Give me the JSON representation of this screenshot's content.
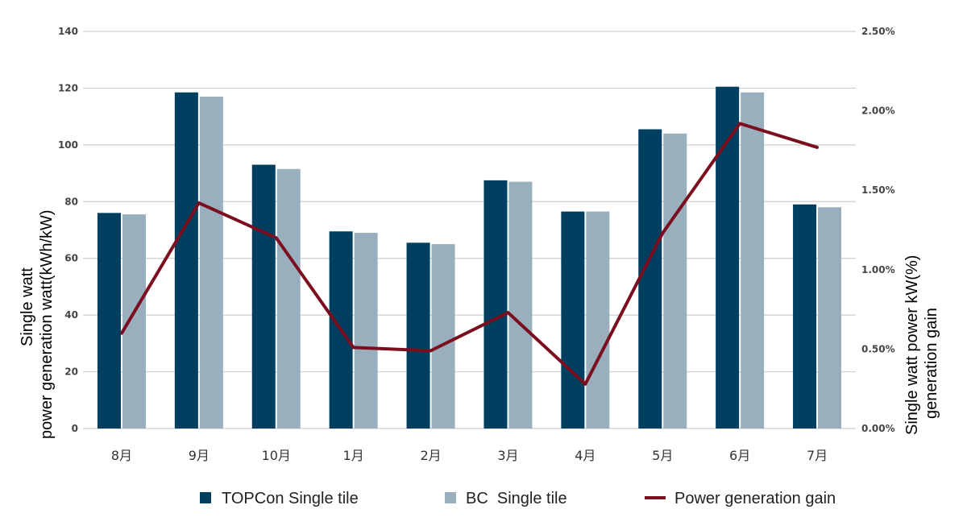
{
  "chart_data": {
    "type": "bar",
    "categories": [
      "8月",
      "9月",
      "10月",
      "1月",
      "2月",
      "3月",
      "4月",
      "5月",
      "6月",
      "7月"
    ],
    "series": [
      {
        "name": "TOPCon Single tile",
        "type": "bar",
        "axis": "left",
        "color": "#003f5f",
        "values": [
          76,
          118.5,
          93,
          69.5,
          65.5,
          87.5,
          76.5,
          105.5,
          120.5,
          79
        ]
      },
      {
        "name": "BC  Single tile",
        "type": "bar",
        "axis": "left",
        "color": "#9aafbd",
        "values": [
          75.5,
          117,
          91.5,
          69,
          65,
          87,
          76.5,
          104,
          118.5,
          78
        ]
      },
      {
        "name": "Power generation gain",
        "type": "line",
        "axis": "right",
        "color": "#7b0f1f",
        "values": [
          0.6,
          1.42,
          1.2,
          0.51,
          0.49,
          0.73,
          0.28,
          1.23,
          1.92,
          1.77
        ]
      }
    ],
    "left_axis": {
      "label_lines": [
        "Single watt",
        "power generation  watt(kWh/kW)"
      ],
      "ylim": [
        0,
        140
      ],
      "ticks": [
        "0",
        "20",
        "40",
        "60",
        "80",
        "100",
        "120",
        "140"
      ]
    },
    "right_axis": {
      "label_lines": [
        "Single watt power  kW(%)",
        "generation gain"
      ],
      "ylim": [
        0,
        2.5
      ],
      "ticks": [
        "0.00%",
        "0.50%",
        "1.00%",
        "1.50%",
        "2.00%",
        "2.50%"
      ]
    },
    "grid": true,
    "legend_position": "bottom"
  }
}
